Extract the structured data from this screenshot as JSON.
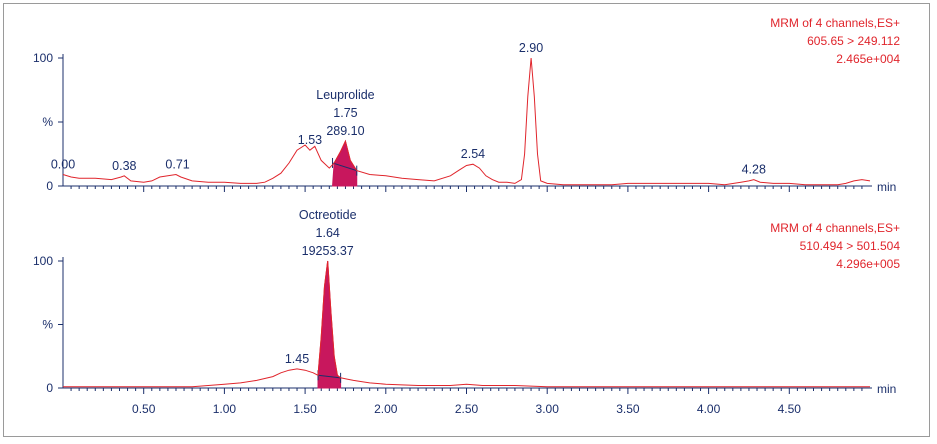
{
  "chart_data": [
    {
      "type": "line",
      "info": [
        "MRM of 4 channels,ES+",
        "605.65 > 249.112",
        "2.465e+004"
      ],
      "ylabel": "%",
      "xunit": "min",
      "xlim": [
        0,
        5.0
      ],
      "ylim": [
        0,
        100
      ],
      "y_tick_labels": [
        "100",
        "0"
      ],
      "trace_color": "#e0252c",
      "fill_color": "#c8175d",
      "peak_labels": [
        {
          "lines": [
            "0.00"
          ],
          "x": 0.0
        },
        {
          "lines": [
            "0.38"
          ],
          "x": 0.38
        },
        {
          "lines": [
            "0.71"
          ],
          "x": 0.71
        },
        {
          "lines": [
            "1.53"
          ],
          "x": 1.53
        },
        {
          "lines": [
            "Leuprolide",
            "1.75",
            "289.10"
          ],
          "x": 1.75
        },
        {
          "lines": [
            "2.54"
          ],
          "x": 2.54
        },
        {
          "lines": [
            "2.90"
          ],
          "x": 2.9
        },
        {
          "lines": [
            "4.28"
          ],
          "x": 4.28
        }
      ],
      "integrated_peak": {
        "start": 1.67,
        "end": 1.82
      },
      "x": [
        0.0,
        0.05,
        0.1,
        0.2,
        0.3,
        0.36,
        0.38,
        0.42,
        0.5,
        0.55,
        0.6,
        0.65,
        0.7,
        0.73,
        0.8,
        0.9,
        1.0,
        1.1,
        1.2,
        1.25,
        1.3,
        1.35,
        1.4,
        1.45,
        1.5,
        1.53,
        1.56,
        1.6,
        1.65,
        1.68,
        1.72,
        1.75,
        1.78,
        1.82,
        1.9,
        2.0,
        2.1,
        2.2,
        2.3,
        2.4,
        2.45,
        2.5,
        2.54,
        2.58,
        2.62,
        2.66,
        2.7,
        2.75,
        2.8,
        2.84,
        2.86,
        2.88,
        2.9,
        2.92,
        2.94,
        2.96,
        3.0,
        3.1,
        3.2,
        3.3,
        3.4,
        3.5,
        3.6,
        3.7,
        3.8,
        3.9,
        4.0,
        4.1,
        4.2,
        4.25,
        4.28,
        4.32,
        4.4,
        4.5,
        4.6,
        4.7,
        4.8,
        4.85,
        4.9,
        4.95,
        5.0
      ],
      "y": [
        9,
        7,
        6,
        6,
        5,
        7,
        8,
        4,
        3,
        4,
        7,
        8,
        9,
        7,
        4,
        3,
        3,
        2,
        2,
        3,
        6,
        10,
        18,
        28,
        32,
        28,
        31,
        20,
        14,
        18,
        27,
        35,
        20,
        12,
        9,
        8,
        6,
        5,
        4,
        8,
        12,
        16,
        17,
        14,
        8,
        5,
        3,
        3,
        2,
        5,
        25,
        70,
        100,
        70,
        25,
        4,
        2,
        1,
        1,
        1,
        1,
        2,
        2,
        2,
        2,
        2,
        2,
        1,
        3,
        4,
        5,
        3,
        2,
        2,
        1,
        1,
        1,
        2,
        4,
        5,
        4
      ]
    },
    {
      "type": "line",
      "info": [
        "MRM of 4 channels,ES+",
        "510.494 > 501.504",
        "4.296e+005"
      ],
      "ylabel": "%",
      "xunit": "min",
      "xlim": [
        0,
        5.0
      ],
      "ylim": [
        0,
        100
      ],
      "y_tick_labels": [
        "100",
        "0"
      ],
      "x_tick_labels": [
        "0.50",
        "1.00",
        "1.50",
        "2.00",
        "2.50",
        "3.00",
        "3.50",
        "4.00",
        "4.50"
      ],
      "trace_color": "#e0252c",
      "fill_color": "#c8175d",
      "peak_labels": [
        {
          "lines": [
            "1.45"
          ],
          "x": 1.45
        },
        {
          "lines": [
            "Octreotide",
            "1.64",
            "19253.37"
          ],
          "x": 1.64
        }
      ],
      "integrated_peak": {
        "start": 1.58,
        "end": 1.72
      },
      "x": [
        0.0,
        0.2,
        0.4,
        0.6,
        0.8,
        1.0,
        1.1,
        1.2,
        1.3,
        1.35,
        1.4,
        1.45,
        1.5,
        1.55,
        1.58,
        1.6,
        1.62,
        1.64,
        1.66,
        1.68,
        1.7,
        1.72,
        1.76,
        1.8,
        1.9,
        2.0,
        2.2,
        2.4,
        2.5,
        2.6,
        2.8,
        3.0,
        3.2,
        3.4,
        3.6,
        3.8,
        4.0,
        4.2,
        4.4,
        4.6,
        4.8,
        5.0
      ],
      "y": [
        1,
        1,
        1,
        1,
        1,
        3,
        4,
        6,
        9,
        12,
        14,
        15,
        14,
        12,
        10,
        40,
        80,
        100,
        60,
        25,
        10,
        8,
        7,
        6,
        4,
        3,
        2,
        2,
        3,
        2,
        2,
        1,
        1,
        1,
        1,
        1,
        1,
        1,
        1,
        1,
        1,
        1
      ]
    }
  ]
}
